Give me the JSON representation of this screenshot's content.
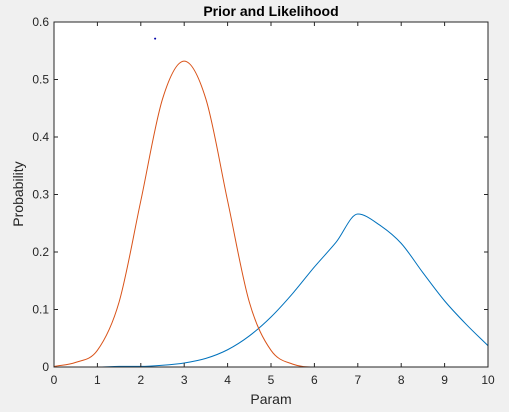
{
  "chart_data": {
    "type": "line",
    "title": "Prior and Likelihood",
    "xlabel": "Param",
    "ylabel": "Probability",
    "xlim": [
      0,
      10
    ],
    "ylim": [
      0,
      0.6
    ],
    "xticks": [
      0,
      1,
      2,
      3,
      4,
      5,
      6,
      7,
      8,
      9,
      10
    ],
    "yticks": [
      0,
      0.1,
      0.2,
      0.3,
      0.4,
      0.5,
      0.6
    ],
    "xtick_labels": [
      "0",
      "1",
      "2",
      "3",
      "4",
      "5",
      "6",
      "7",
      "8",
      "9",
      "10"
    ],
    "ytick_labels": [
      "0",
      "0.1",
      "0.2",
      "0.3",
      "0.4",
      "0.5",
      "0.6"
    ],
    "grid": false,
    "legend": "none",
    "series": [
      {
        "color": "#0072bd",
        "x": [
          0,
          0.5,
          1,
          1.5,
          2,
          2.5,
          3,
          3.5,
          4,
          4.5,
          5,
          5.5,
          6,
          6.5,
          7,
          7.5,
          8,
          8.5,
          9,
          9.5,
          10
        ],
        "y": [
          0.0,
          0.0,
          0.0,
          0.001,
          0.001,
          0.003,
          0.007,
          0.015,
          0.03,
          0.054,
          0.087,
          0.128,
          0.174,
          0.217,
          0.266,
          0.247,
          0.215,
          0.164,
          0.115,
          0.074,
          0.037
        ]
      },
      {
        "color": "#d95319",
        "x": [
          0,
          0.5,
          1,
          1.5,
          2,
          2.5,
          3,
          3.5,
          4,
          4.5,
          5,
          5.5,
          6,
          6.5,
          7,
          7.5,
          8,
          8.5,
          9,
          9.5,
          10
        ],
        "y": [
          0.001,
          0.008,
          0.029,
          0.113,
          0.289,
          0.466,
          0.532,
          0.466,
          0.289,
          0.113,
          0.029,
          0.005,
          0.0,
          0.0,
          0.0,
          0.0,
          0.0,
          0.0,
          0.0,
          0.0,
          0.0
        ]
      },
      {
        "color": "#0000aa",
        "marker": "point",
        "x": [
          2.33
        ],
        "y": [
          0.571
        ]
      }
    ]
  }
}
